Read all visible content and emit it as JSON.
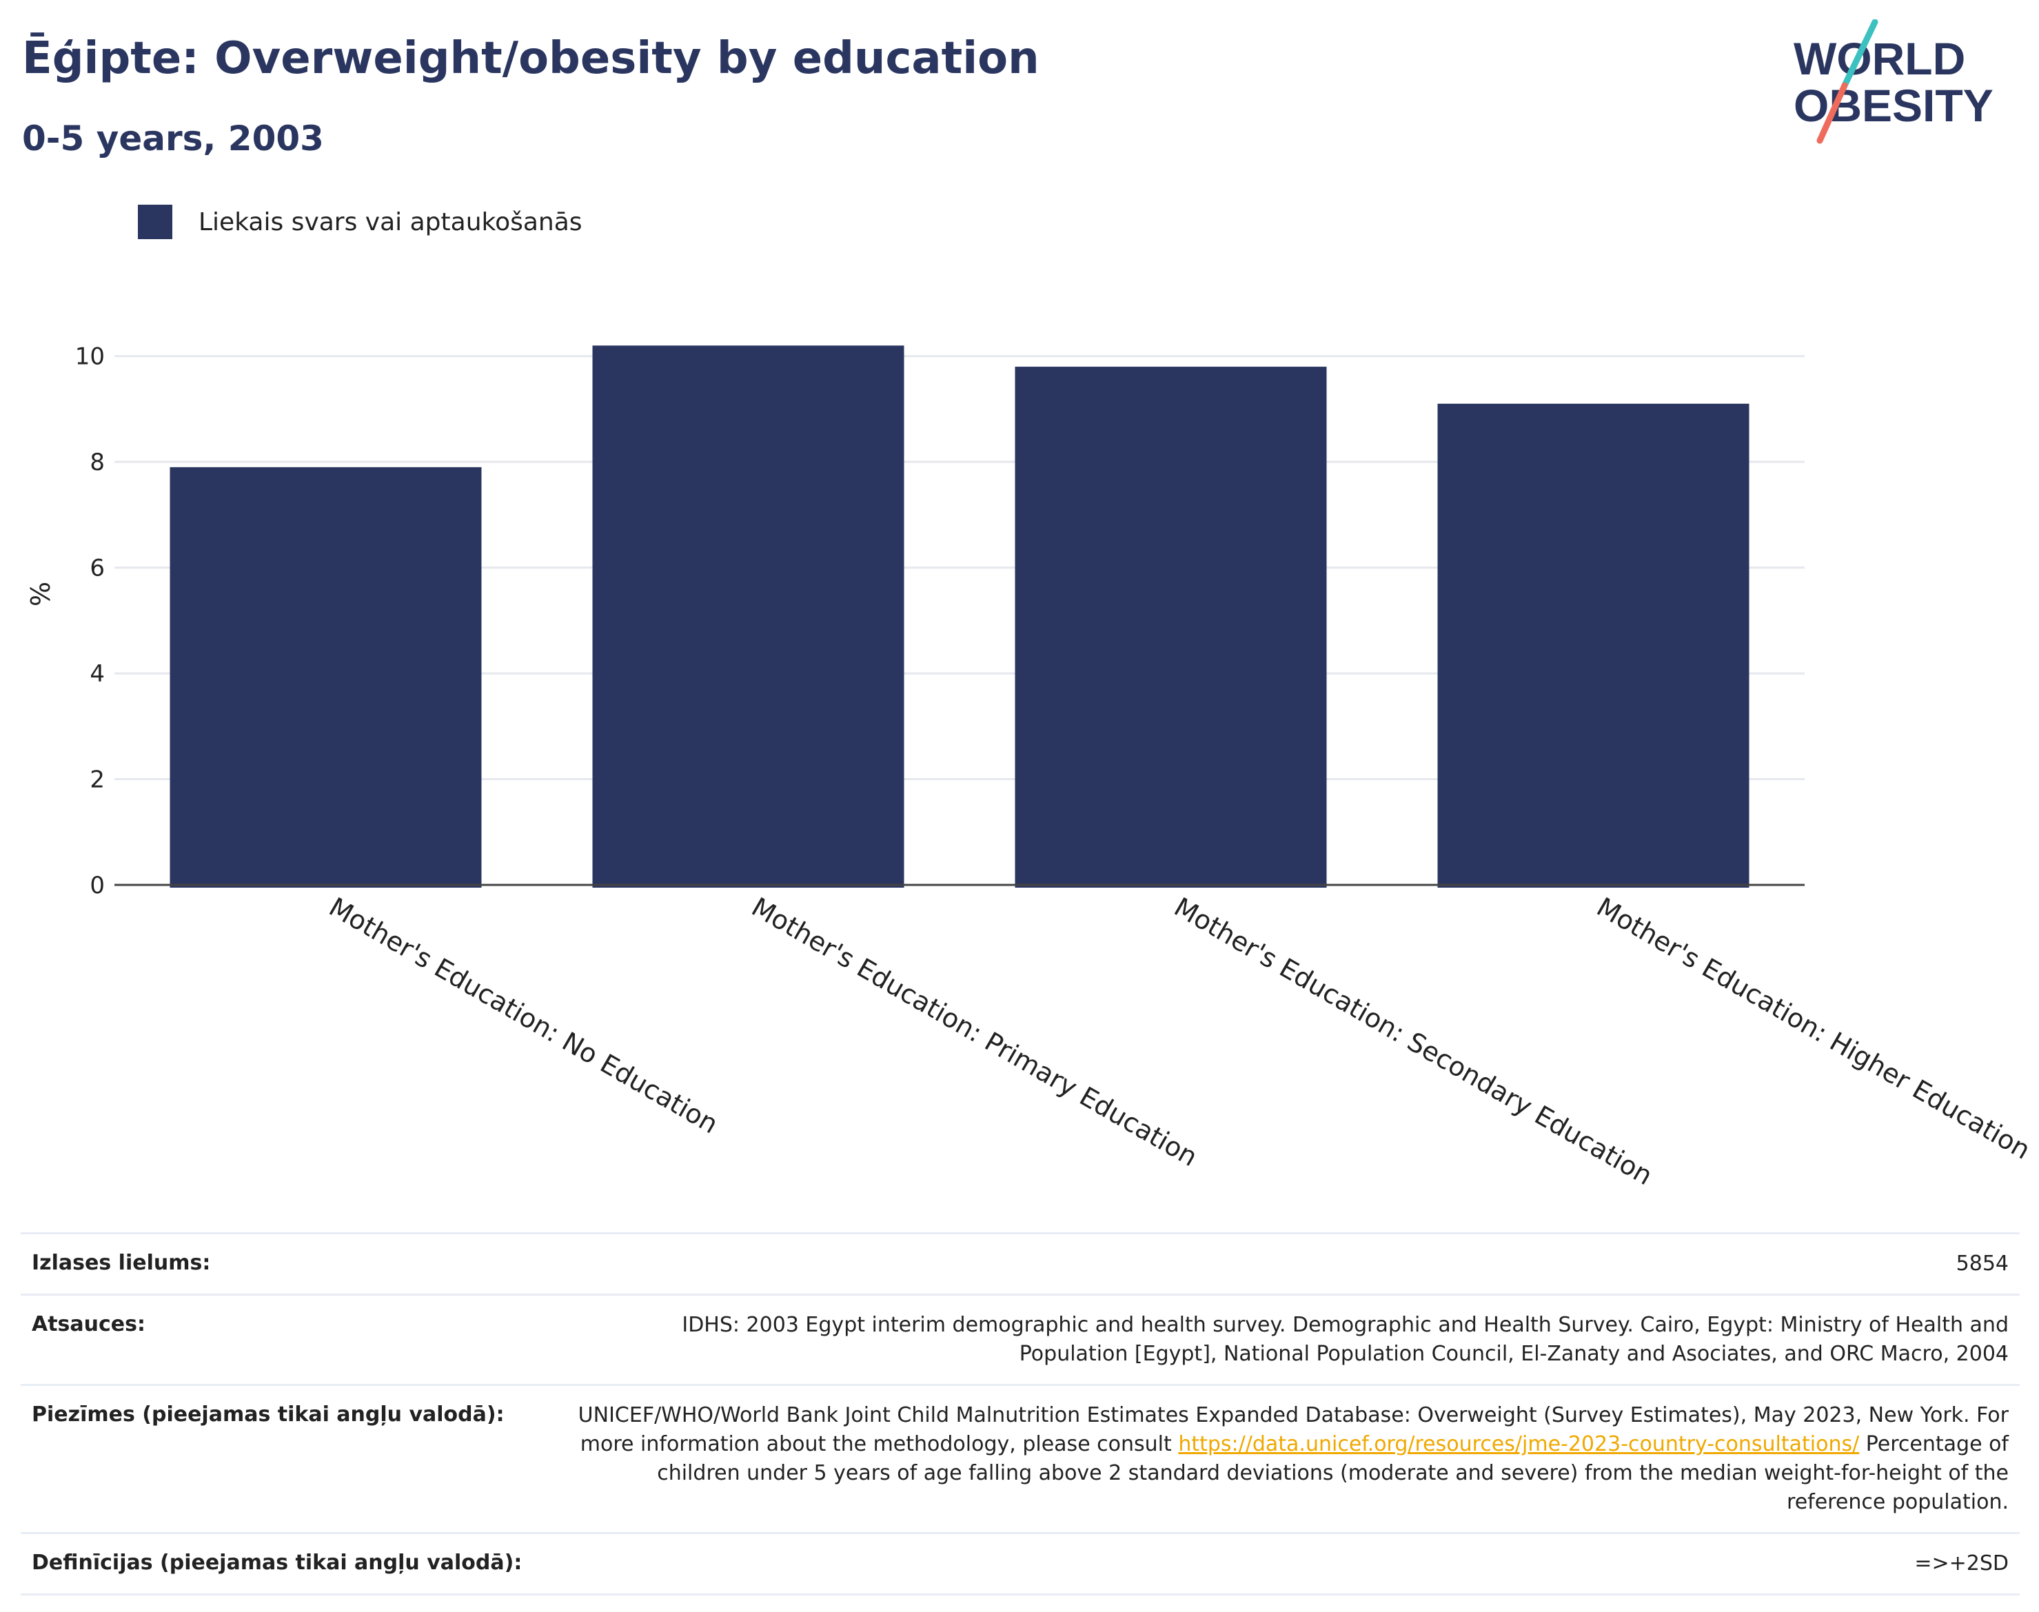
{
  "header": {
    "title": "Ēģipte: Overweight/obesity by education",
    "subtitle": "0-5 years, 2003"
  },
  "logo": {
    "line1": "WORLD",
    "line2": "OBESITY"
  },
  "colors": {
    "bar": "#2b3660",
    "title": "#2b3660",
    "link": "#f0a800",
    "logo_teal": "#3cc0c0",
    "logo_coral": "#ef6b5b"
  },
  "chart_data": {
    "type": "bar",
    "categories": [
      "Mother's Education: No Education",
      "Mother's Education: Primary Education",
      "Mother's Education: Secondary Education",
      "Mother's Education: Higher Education"
    ],
    "series": [
      {
        "name": "Liekais svars vai aptaukošanās",
        "values": [
          7.9,
          10.2,
          9.8,
          9.1
        ]
      }
    ],
    "ylabel": "%",
    "xlabel": "",
    "ylim": [
      0,
      11
    ],
    "yticks": [
      0,
      2,
      4,
      6,
      8,
      10
    ],
    "grid": true,
    "legend_position": "top-left"
  },
  "meta": {
    "rows": [
      {
        "label": "Izlases lielums:",
        "value": "5854"
      },
      {
        "label": "Atsauces:",
        "value": "IDHS: 2003 Egypt interim demographic and health survey. Demographic and Health Survey. Cairo, Egypt: Ministry of Health and Population [Egypt], National Population Council, El-Zanaty and Asociates, and ORC Macro, 2004"
      },
      {
        "label": "Piezīmes (pieejamas tikai angļu valodā):",
        "value_before": "UNICEF/WHO/World Bank Joint Child Malnutrition Estimates Expanded Database: Overweight (Survey Estimates), May 2023, New York. For more information about the methodology, please consult ",
        "link": "https://data.unicef.org/resources/jme-2023-country-consultations/",
        "value_after": " Percentage of children under 5 years of age falling above 2 standard deviations (moderate and severe) from the median weight-for-height of the reference population."
      },
      {
        "label": "Definīcijas (pieejamas tikai angļu valodā):",
        "value": "=>+2SD"
      }
    ]
  }
}
